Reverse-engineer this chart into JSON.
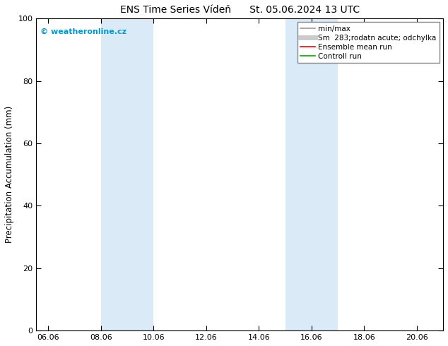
{
  "title": "ENS Time Series Vídeň      St. 05.06.2024 13 UTC",
  "ylabel": "Precipitation Accumulation (mm)",
  "ylim": [
    0,
    100
  ],
  "yticks": [
    0,
    20,
    40,
    60,
    80,
    100
  ],
  "xstart": "2024-06-05 13:00",
  "xtick_labels": [
    "06.06",
    "08.06",
    "10.06",
    "12.06",
    "14.06",
    "16.06",
    "18.06",
    "20.06"
  ],
  "xtick_dates": [
    "2024-06-06",
    "2024-06-08",
    "2024-06-10",
    "2024-06-12",
    "2024-06-14",
    "2024-06-16",
    "2024-06-18",
    "2024-06-20"
  ],
  "shaded_bands": [
    {
      "xstart": "2024-06-08",
      "xend": "2024-06-10"
    },
    {
      "xstart": "2024-06-15",
      "xend": "2024-06-17"
    }
  ],
  "shade_color": "#daeaf7",
  "watermark": "© weatheronline.cz",
  "watermark_color": "#0099cc",
  "legend_labels": [
    "min/max",
    "Sm  283;rodatn acute; odchylka",
    "Ensemble mean run",
    "Controll run"
  ],
  "legend_colors": [
    "#999999",
    "#cccccc",
    "#ff0000",
    "#00aa00"
  ],
  "legend_lws": [
    1.2,
    5,
    1.2,
    1.2
  ],
  "bg_color": "#ffffff",
  "spine_color": "#000000",
  "title_fontsize": 10,
  "label_fontsize": 8.5,
  "tick_fontsize": 8,
  "legend_fontsize": 7.5
}
